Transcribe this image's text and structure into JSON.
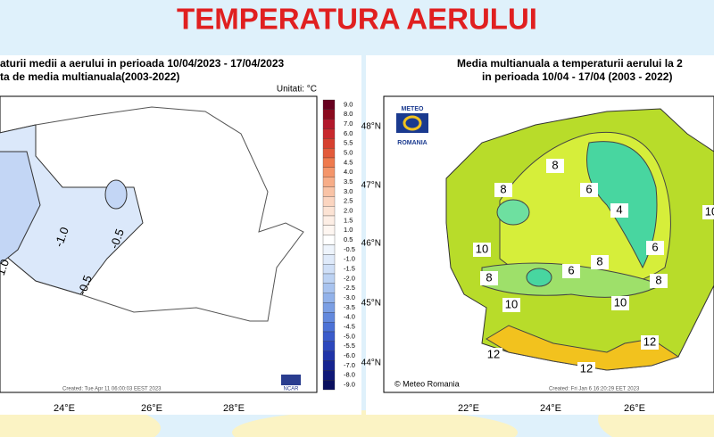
{
  "header": {
    "title": "TEMPERATURA AERULUI"
  },
  "left_map": {
    "title_lines": [
      "aturii medii a aerului in perioada 10/04/2023 - 17/04/2023",
      "ta de media multianuala(2003-2022)"
    ],
    "units": "Unitati: °C",
    "colorbar_labels": [
      "9.0",
      "8.0",
      "7.0",
      "6.0",
      "5.5",
      "5.0",
      "4.5",
      "4.0",
      "3.5",
      "3.0",
      "2.5",
      "2.0",
      "1.5",
      "1.0",
      "0.5",
      "-0.5",
      "-1.0",
      "-1.5",
      "-2.0",
      "-2.5",
      "-3.0",
      "-3.5",
      "-4.0",
      "-4.5",
      "-5.0",
      "-5.5",
      "-6.0",
      "-7.0",
      "-8.0",
      "-9.0"
    ],
    "contour_labels": [
      "-1.0",
      "-0.5",
      "-0.5",
      "1.0"
    ],
    "x_labels": [
      "24°E",
      "26°E",
      "28°E"
    ],
    "credit": "Created: Tue Apr 11 06:00:03 EEST 2023",
    "logo": "NCAR"
  },
  "right_map": {
    "title_lines": [
      "Media multianuala a temperaturii aerului la 2",
      "in perioada 10/04 - 17/04 (2003 - 2022)"
    ],
    "logo_top": "METEO",
    "logo_bottom": "ROMANIA",
    "y_labels": [
      "48°N",
      "47°N",
      "46°N",
      "45°N",
      "44°N"
    ],
    "x_labels": [
      "22°E",
      "24°E",
      "26°E"
    ],
    "contour_labels": [
      "8",
      "6",
      "4",
      "8",
      "10",
      "8",
      "6",
      "8",
      "6",
      "8",
      "10",
      "10",
      "12",
      "12",
      "12",
      "10"
    ],
    "copyright": "© Meteo Romania",
    "credit": "Created: Fri Jan 6 16:20:29 EET 2023"
  }
}
